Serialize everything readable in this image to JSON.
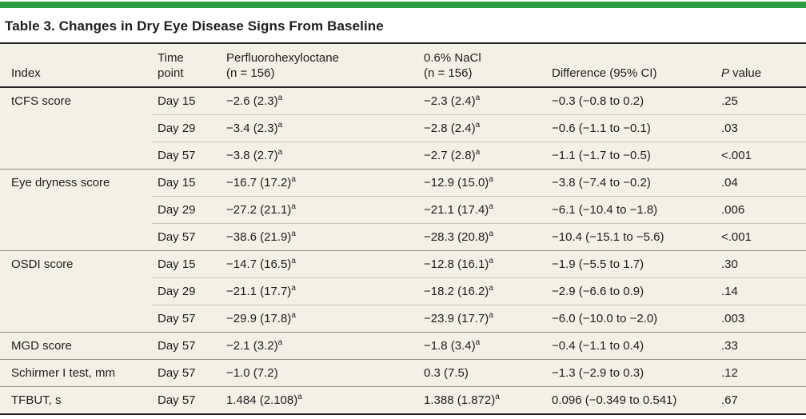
{
  "accent_color": "#2e9b43",
  "table_background_color": "#f3f0e6",
  "title": "Table 3. Changes in Dry Eye Disease Signs From Baseline",
  "columns": {
    "index": "Index",
    "time_point": "Time\npoint",
    "drug": "Perfluorohexyloctane\n(n = 156)",
    "nacl": "0.6% NaCl\n(n = 156)",
    "difference": "Difference (95% CI)",
    "p_italic": "P",
    "p_rest": " value"
  },
  "rows": [
    {
      "index": "tCFS score",
      "time": "Day 15",
      "drug": "−2.6 (2.3)^a",
      "nacl": "−2.3 (2.4)^a",
      "diff": "−0.3 (−0.8 to 0.2)",
      "p": ".25",
      "group_start": true
    },
    {
      "index": "",
      "time": "Day 29",
      "drug": "−3.4 (2.3)^a",
      "nacl": "−2.8 (2.4)^a",
      "diff": "−0.6 (−1.1 to −0.1)",
      "p": ".03",
      "group_start": false
    },
    {
      "index": "",
      "time": "Day 57",
      "drug": "−3.8 (2.7)^a",
      "nacl": "−2.7 (2.8)^a",
      "diff": "−1.1 (−1.7 to −0.5)",
      "p": "<.001",
      "group_start": false
    },
    {
      "index": "Eye dryness score",
      "time": "Day 15",
      "drug": "−16.7 (17.2)^a",
      "nacl": "−12.9 (15.0)^a",
      "diff": "−3.8 (−7.4 to −0.2)",
      "p": ".04",
      "group_start": true
    },
    {
      "index": "",
      "time": "Day 29",
      "drug": "−27.2 (21.1)^a",
      "nacl": "−21.1 (17.4)^a",
      "diff": "−6.1 (−10.4 to −1.8)",
      "p": ".006",
      "group_start": false
    },
    {
      "index": "",
      "time": "Day 57",
      "drug": "−38.6 (21.9)^a",
      "nacl": "−28.3 (20.8)^a",
      "diff": "−10.4 (−15.1 to −5.6)",
      "p": "<.001",
      "group_start": false
    },
    {
      "index": "OSDI score",
      "time": "Day 15",
      "drug": "−14.7 (16.5)^a",
      "nacl": "−12.8 (16.1)^a",
      "diff": "−1.9 (−5.5 to 1.7)",
      "p": ".30",
      "group_start": true
    },
    {
      "index": "",
      "time": "Day 29",
      "drug": "−21.1 (17.7)^a",
      "nacl": "−18.2 (16.2)^a",
      "diff": "−2.9 (−6.6 to 0.9)",
      "p": ".14",
      "group_start": false
    },
    {
      "index": "",
      "time": "Day 57",
      "drug": "−29.9 (17.8)^a",
      "nacl": "−23.9 (17.7)^a",
      "diff": "−6.0 (−10.0 to −2.0)",
      "p": ".003",
      "group_start": false
    },
    {
      "index": "MGD score",
      "time": "Day 57",
      "drug": "−2.1 (3.2)^a",
      "nacl": "−1.8 (3.4)^a",
      "diff": "−0.4 (−1.1 to 0.4)",
      "p": ".33",
      "group_start": true
    },
    {
      "index": "Schirmer I test, mm",
      "time": "Day 57",
      "drug": "−1.0 (7.2)",
      "nacl": "0.3 (7.5)",
      "diff": "−1.3 (−2.9 to 0.3)",
      "p": ".12",
      "group_start": true
    },
    {
      "index": "TFBUT, s",
      "time": "Day 57",
      "drug": "1.484 (2.108)^a",
      "nacl": "1.388 (1.872)^a",
      "diff": "0.096 (−0.349 to 0.541)",
      "p": ".67",
      "group_start": true
    }
  ]
}
